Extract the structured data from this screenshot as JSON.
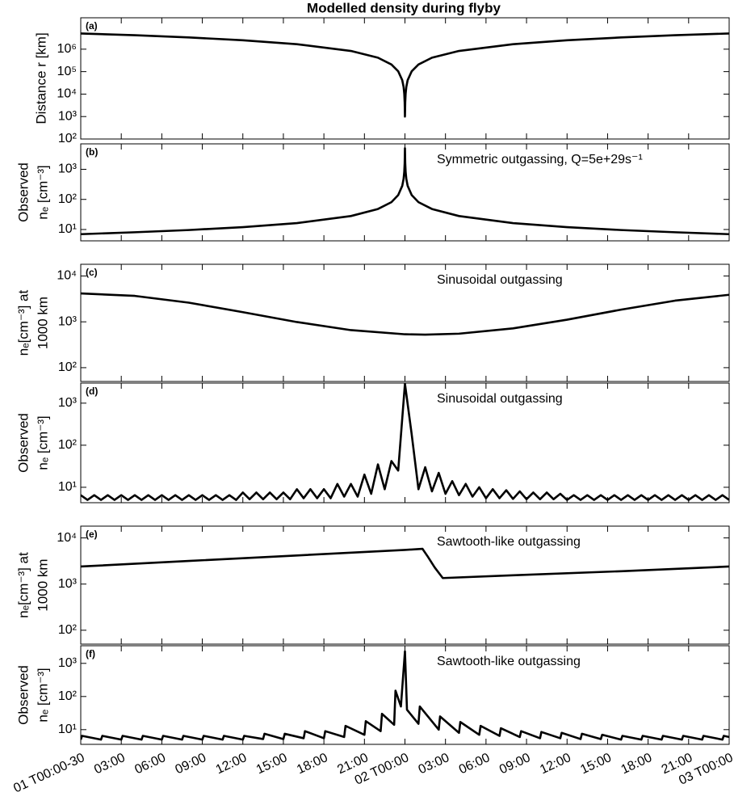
{
  "chart_data": [
    {
      "type": "line",
      "title": "Modelled density during flyby",
      "panel_label": "(a)",
      "ylabel": [
        "Distance r [km]"
      ],
      "yscale": "log",
      "xlim": [
        0,
        48
      ],
      "ylim": [
        100,
        25000000
      ],
      "yticks": [
        {
          "value": 100,
          "label": "10²"
        },
        {
          "value": 1000,
          "label": "10³"
        },
        {
          "value": 10000,
          "label": "10⁴"
        },
        {
          "value": 100000,
          "label": "10⁵"
        },
        {
          "value": 1000000,
          "label": "10⁶"
        }
      ],
      "x": [
        0,
        4,
        8,
        12,
        16,
        20,
        22,
        23,
        23.5,
        23.8,
        23.9,
        23.95,
        23.98,
        24,
        24.02,
        24.05,
        24.1,
        24.2,
        24.5,
        25,
        26,
        28,
        32,
        36,
        40,
        44,
        48
      ],
      "color": "#000000",
      "values": [
        5000000,
        4170000,
        3330000,
        2500000,
        1670000,
        833000,
        417000,
        208000,
        104000,
        41700,
        20800,
        10400,
        4290,
        1000,
        4290,
        10400,
        20800,
        41700,
        104000,
        208000,
        417000,
        833000,
        1670000,
        2500000,
        3330000,
        4170000,
        5000000
      ]
    },
    {
      "type": "line",
      "panel_label": "(b)",
      "annotation": "Symmetric outgassing, Q=5e+29s⁻¹",
      "ylabel": [
        "Observed",
        "nₑ [cm⁻³]"
      ],
      "yscale": "log",
      "xlim": [
        0,
        48
      ],
      "ylim": [
        4.2,
        7000
      ],
      "yticks": [
        {
          "value": 10,
          "label": "10¹"
        },
        {
          "value": 100,
          "label": "10²"
        },
        {
          "value": 1000,
          "label": "10³"
        }
      ],
      "x": [
        0,
        4,
        8,
        12,
        16,
        20,
        22,
        23,
        23.5,
        23.8,
        23.9,
        23.95,
        23.98,
        24,
        24.02,
        24.05,
        24.1,
        24.2,
        24.5,
        25,
        26,
        28,
        32,
        36,
        40,
        44,
        48
      ],
      "color": "#000000",
      "values": [
        7,
        8.1,
        9.6,
        12,
        16.3,
        28,
        48,
        81,
        139,
        282,
        482,
        823,
        1620,
        5000,
        1620,
        823,
        482,
        282,
        139,
        81,
        48,
        28,
        16.3,
        12,
        9.6,
        8.1,
        7
      ]
    },
    {
      "type": "line",
      "panel_label": "(c)",
      "annotation": "Sinusoidal outgassing",
      "ylabel": [
        "nₑ[cm⁻³] at",
        "1000 km"
      ],
      "yscale": "log",
      "xlim": [
        0,
        48
      ],
      "ylim": [
        50,
        18000
      ],
      "yticks": [
        {
          "value": 100,
          "label": "10²"
        },
        {
          "value": 1000,
          "label": "10³"
        },
        {
          "value": 10000,
          "label": "10⁴"
        }
      ],
      "x": [
        0,
        4,
        8,
        12,
        16,
        20,
        24,
        25.5,
        28,
        32,
        36,
        40,
        44,
        48
      ],
      "color": "#000000",
      "values": [
        4170,
        3680,
        2620,
        1625,
        989,
        659,
        535,
        525,
        551,
        719,
        1114,
        1845,
        2900,
        3890
      ]
    },
    {
      "type": "line",
      "panel_label": "(d)",
      "annotation": "Sinusoidal outgassing",
      "ylabel": [
        "Observed",
        "nₑ [cm⁻³]"
      ],
      "yscale": "log",
      "xlim": [
        0,
        48
      ],
      "ylim": [
        4.3,
        3000
      ],
      "yticks": [
        {
          "value": 10,
          "label": "10¹"
        },
        {
          "value": 100,
          "label": "10²"
        },
        {
          "value": 1000,
          "label": "10³"
        }
      ],
      "x": [
        0,
        0.5,
        1,
        1.5,
        2,
        2.5,
        3,
        3.5,
        4,
        4.5,
        5,
        5.5,
        6,
        6.5,
        7,
        7.5,
        8,
        8.5,
        9,
        9.5,
        10,
        10.5,
        11,
        11.5,
        12,
        12.5,
        13,
        13.5,
        14,
        14.5,
        15,
        15.5,
        16,
        16.5,
        17,
        17.5,
        18,
        18.5,
        19,
        19.5,
        20,
        20.5,
        21,
        21.5,
        22,
        22.5,
        23,
        23.5,
        24,
        24.5,
        25,
        25.5,
        26,
        26.5,
        27,
        27.5,
        28,
        28.5,
        29,
        29.5,
        30,
        30.5,
        31,
        31.5,
        32,
        32.5,
        33,
        33.5,
        34,
        34.5,
        35,
        35.5,
        36,
        36.5,
        37,
        37.5,
        38,
        38.5,
        39,
        39.5,
        40,
        40.5,
        41,
        41.5,
        42,
        42.5,
        43,
        43.5,
        44,
        44.5,
        45,
        45.5,
        46,
        46.5,
        47,
        47.5,
        48
      ],
      "color": "#000000",
      "values": [
        6.5,
        5,
        6.5,
        5,
        6.5,
        5,
        6.5,
        5,
        6.5,
        5,
        6.5,
        5,
        6.5,
        5,
        6.5,
        5,
        6.5,
        5,
        6.5,
        5,
        6.5,
        5,
        6.5,
        5,
        7.5,
        5.2,
        7.5,
        5.2,
        7.5,
        5.2,
        7.5,
        5.2,
        9,
        5.5,
        9,
        5.5,
        9,
        5.5,
        12,
        6,
        12,
        6,
        20,
        7,
        35,
        9,
        42,
        25,
        2900,
        180,
        9,
        30,
        8,
        22,
        7,
        14,
        6.5,
        12,
        6,
        10,
        5.5,
        9,
        5.5,
        8.5,
        5.3,
        8,
        5.2,
        7.5,
        5.2,
        7.5,
        5.2,
        7,
        5,
        6.5,
        5,
        6.5,
        5,
        6.5,
        5,
        6.5,
        5,
        6.5,
        5,
        6.5,
        5,
        6.5,
        5,
        6.5,
        5,
        6.5,
        5,
        6.5,
        5,
        6.5,
        5,
        6.5,
        5
      ]
    },
    {
      "type": "line",
      "panel_label": "(e)",
      "annotation": "Sawtooth-like outgassing",
      "ylabel": [
        "nₑ[cm⁻³] at",
        "1000 km"
      ],
      "yscale": "log",
      "xlim": [
        0,
        48
      ],
      "ylim": [
        50,
        18000
      ],
      "yticks": [
        {
          "value": 100,
          "label": "10²"
        },
        {
          "value": 1000,
          "label": "10³"
        },
        {
          "value": 10000,
          "label": "10⁴"
        }
      ],
      "x": [
        0,
        8,
        16,
        24,
        25.3,
        25.7,
        26.2,
        26.8,
        32,
        40,
        48
      ],
      "color": "#000000",
      "values": [
        2400,
        3170,
        4170,
        5500,
        5800,
        3900,
        2300,
        1350,
        1550,
        1900,
        2400
      ]
    },
    {
      "type": "line",
      "panel_label": "(f)",
      "annotation": "Sawtooth-like outgassing",
      "ylabel": [
        "Observed",
        "nₑ [cm⁻³]"
      ],
      "yscale": "log",
      "xlim": [
        0,
        48
      ],
      "ylim": [
        3.6,
        3400
      ],
      "yticks": [
        {
          "value": 10,
          "label": "10¹"
        },
        {
          "value": 100,
          "label": "10²"
        },
        {
          "value": 1000,
          "label": "10³"
        }
      ],
      "xticks": [
        {
          "value": 0,
          "label": "01 T00:00-30"
        },
        {
          "value": 3,
          "label": "03:00"
        },
        {
          "value": 6,
          "label": "06:00"
        },
        {
          "value": 9,
          "label": "09:00"
        },
        {
          "value": 12,
          "label": "12:00"
        },
        {
          "value": 15,
          "label": "15:00"
        },
        {
          "value": 18,
          "label": "18:00"
        },
        {
          "value": 21,
          "label": "21:00"
        },
        {
          "value": 24,
          "label": "02 T00:00"
        },
        {
          "value": 27,
          "label": "03:00"
        },
        {
          "value": 30,
          "label": "06:00"
        },
        {
          "value": 33,
          "label": "09:00"
        },
        {
          "value": 36,
          "label": "12:00"
        },
        {
          "value": 39,
          "label": "15:00"
        },
        {
          "value": 42,
          "label": "18:00"
        },
        {
          "value": 45,
          "label": "21:00"
        },
        {
          "value": 48,
          "label": "03 T00:00"
        }
      ],
      "x": [
        0,
        0.1,
        1.5,
        1.6,
        3,
        3.1,
        4.5,
        4.6,
        6,
        6.1,
        7.5,
        7.6,
        9,
        9.1,
        10.5,
        10.6,
        12,
        12.1,
        13.5,
        13.6,
        15,
        15.1,
        16.5,
        16.6,
        18,
        18.1,
        19.5,
        19.6,
        21,
        21.1,
        22.2,
        22.3,
        23.2,
        23.3,
        23.7,
        24,
        24.15,
        25,
        25.1,
        26.5,
        26.6,
        28,
        28.1,
        29.5,
        29.6,
        31,
        31.1,
        32.5,
        32.6,
        34,
        34.1,
        35.5,
        35.6,
        37,
        37.1,
        38.5,
        38.6,
        40,
        40.1,
        41.5,
        41.6,
        43,
        43.1,
        44.5,
        44.6,
        46,
        46.1,
        47.5,
        47.6,
        48
      ],
      "color": "#000000",
      "values": [
        5,
        6.5,
        5,
        6.5,
        5,
        6.5,
        5,
        6.5,
        5,
        6.5,
        5,
        6.5,
        5,
        6.5,
        5,
        6.5,
        5,
        6.5,
        5.2,
        7.5,
        5.2,
        7.5,
        5.5,
        9,
        5.5,
        9,
        6,
        13,
        7,
        18,
        9,
        30,
        14,
        150,
        50,
        2300,
        40,
        15,
        50,
        10,
        25,
        8,
        17,
        7,
        13,
        6.5,
        11,
        6,
        9,
        5.5,
        8.5,
        5.5,
        8,
        5.2,
        7.5,
        5.2,
        7,
        5,
        6.5,
        5,
        6.5,
        5,
        6.5,
        5,
        6.5,
        5,
        6.5,
        5,
        6.5,
        6
      ]
    }
  ]
}
